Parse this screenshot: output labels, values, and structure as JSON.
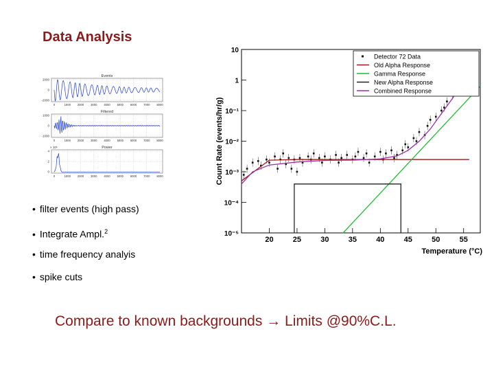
{
  "slide": {
    "title": "Data Analysis",
    "bullets": [
      {
        "text": "filter events (high pass)",
        "sup": ""
      },
      {
        "text": "Integrate Ampl.",
        "sup": "2"
      },
      {
        "text": "time frequency analyis",
        "sup": ""
      },
      {
        "text": "spike cuts",
        "sup": ""
      }
    ],
    "bullet_char": "•",
    "footer": {
      "left": "Compare to known backgrounds",
      "arrow": "→",
      "right": "Limits @90%C.L."
    },
    "colors": {
      "title": "#8B1A1A",
      "footer": "#8B1A1A"
    }
  },
  "chart_data": [
    {
      "type": "line",
      "title": "",
      "panels": [
        {
          "title": "Events",
          "yticks": [
            "2000",
            "0",
            "-2000"
          ],
          "color": "#1f3fd0"
        },
        {
          "title": "Filtered",
          "yticks": [
            "1000",
            "0",
            "-1000"
          ],
          "color": "#1f3fd0"
        },
        {
          "title": "Power",
          "exponent": "× 10⁶",
          "yticks": [
            "4",
            "2",
            "0"
          ],
          "color": "#1f3fd0"
        }
      ],
      "xticks": [
        "0",
        "1000",
        "2000",
        "3000",
        "4000",
        "5000",
        "6000",
        "7000",
        "8000"
      ],
      "xlabel": "",
      "ylabel": ""
    },
    {
      "type": "scatter",
      "title": "",
      "xlabel": "Temperature (°C)",
      "ylabel": "Count Rate (events/hr/g)",
      "xlim": [
        15,
        58
      ],
      "ylog": true,
      "ylim_exponent": [
        -5,
        1
      ],
      "xticks": [
        20,
        25,
        30,
        35,
        40,
        45,
        50,
        55
      ],
      "yticks": [
        "10",
        "1",
        "10⁻¹",
        "10⁻²",
        "10⁻³",
        "10⁻⁴",
        "10⁻⁵"
      ],
      "legend_position": "top-right",
      "series": [
        {
          "name": "Detector 72 Data",
          "color": "#111111",
          "kind": "points",
          "points": [
            [
              15.4,
              -3.1
            ],
            [
              16,
              -2.9
            ],
            [
              17,
              -2.7
            ],
            [
              18,
              -2.65
            ],
            [
              18.5,
              -2.8
            ],
            [
              19.5,
              -2.6
            ],
            [
              20,
              -2.7
            ],
            [
              21,
              -2.5
            ],
            [
              21.5,
              -2.9
            ],
            [
              22,
              -2.6
            ],
            [
              22.5,
              -2.4
            ],
            [
              23,
              -2.75
            ],
            [
              23.5,
              -2.55
            ],
            [
              24,
              -2.9
            ],
            [
              24.5,
              -2.6
            ],
            [
              25,
              -3.0
            ],
            [
              25.5,
              -2.55
            ],
            [
              26,
              -2.7
            ],
            [
              27,
              -2.5
            ],
            [
              27.5,
              -2.6
            ],
            [
              28,
              -2.4
            ],
            [
              29,
              -2.55
            ],
            [
              29.5,
              -2.7
            ],
            [
              30,
              -2.5
            ],
            [
              31,
              -2.6
            ],
            [
              32,
              -2.45
            ],
            [
              32.5,
              -2.7
            ],
            [
              33,
              -2.55
            ],
            [
              34,
              -2.45
            ],
            [
              35,
              -2.6
            ],
            [
              35.5,
              -2.5
            ],
            [
              36,
              -2.35
            ],
            [
              37,
              -2.55
            ],
            [
              37.5,
              -2.4
            ],
            [
              38,
              -2.7
            ],
            [
              39,
              -2.5
            ],
            [
              40,
              -2.35
            ],
            [
              40.5,
              -2.6
            ],
            [
              41,
              -2.4
            ],
            [
              42,
              -2.3
            ],
            [
              42.5,
              -2.55
            ],
            [
              43,
              -2.45
            ],
            [
              44,
              -2.3
            ],
            [
              44.5,
              -2.1
            ],
            [
              45,
              -2.2
            ],
            [
              46,
              -1.9
            ],
            [
              46.5,
              -2.0
            ],
            [
              47,
              -1.7
            ],
            [
              48,
              -1.8
            ],
            [
              48.5,
              -1.5
            ],
            [
              49,
              -1.3
            ],
            [
              50,
              -1.2
            ],
            [
              51,
              -1.0
            ],
            [
              51.5,
              -0.9
            ],
            [
              52,
              -0.7
            ],
            [
              53,
              -0.5
            ],
            [
              53.5,
              -0.3
            ],
            [
              54,
              -0.2
            ],
            [
              54.5,
              0.0
            ],
            [
              55,
              0.2
            ],
            [
              55.5,
              0.5
            ],
            [
              56,
              0.3
            ]
          ]
        },
        {
          "name": "Old Alpha Response",
          "color": "#a0191b",
          "kind": "line",
          "points": [
            [
              15,
              -3.3
            ],
            [
              20,
              -2.62
            ],
            [
              25,
              -2.6
            ],
            [
              35,
              -2.6
            ],
            [
              45,
              -2.6
            ],
            [
              56,
              -2.6
            ]
          ]
        },
        {
          "name": "Gamma Response",
          "color": "#22bb33",
          "kind": "line",
          "points": [
            [
              33.3,
              -5.0
            ],
            [
              58,
              -0.2
            ]
          ]
        },
        {
          "name": "New Alpha Response",
          "color": "#222222",
          "kind": "line",
          "points": [
            [
              24.5,
              -5.0
            ],
            [
              24.5,
              -3.4
            ],
            [
              43.7,
              -3.4
            ],
            [
              43.7,
              -5.0
            ]
          ]
        },
        {
          "name": "Combined Response",
          "color": "#9a2fa8",
          "kind": "line",
          "points": [
            [
              15,
              -3.4
            ],
            [
              17,
              -3.0
            ],
            [
              20,
              -2.78
            ],
            [
              25,
              -2.68
            ],
            [
              30,
              -2.63
            ],
            [
              35,
              -2.62
            ],
            [
              40,
              -2.58
            ],
            [
              43,
              -2.48
            ],
            [
              45,
              -2.3
            ],
            [
              47,
              -2.0
            ],
            [
              49,
              -1.6
            ],
            [
              51,
              -1.1
            ],
            [
              53,
              -0.6
            ],
            [
              55,
              -0.05
            ],
            [
              56,
              0.2
            ]
          ]
        }
      ]
    }
  ]
}
